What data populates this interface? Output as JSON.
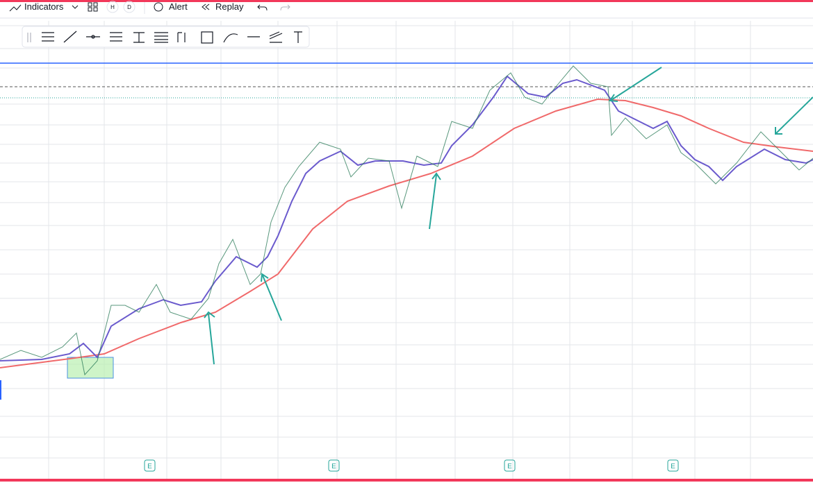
{
  "toolbar": {
    "indicators": "Indicators",
    "hourly": "H",
    "daily": "D",
    "alert": "Alert",
    "replay": "Replay"
  },
  "earnings_markers": [
    "E",
    "E",
    "E",
    "E"
  ]
}
